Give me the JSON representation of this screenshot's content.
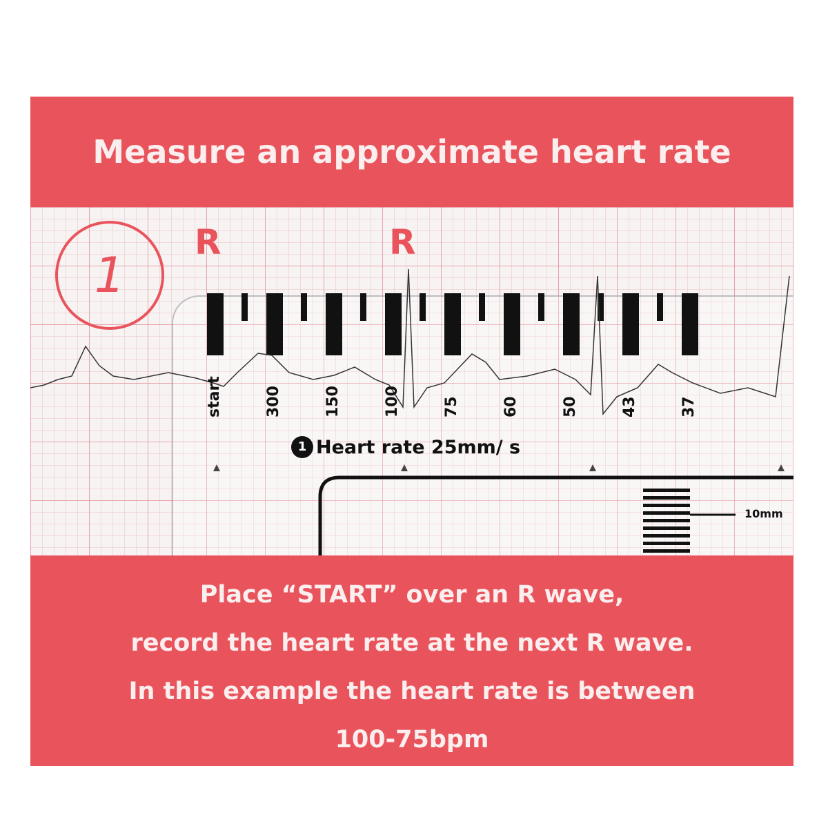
{
  "title": "Measure an approximate heart rate",
  "step_number": "1",
  "r_wave_label": "R",
  "scale_labels": [
    "start",
    "300",
    "150",
    "100",
    "75",
    "60",
    "50",
    "43",
    "37"
  ],
  "ruler_caption_badge": "1",
  "ruler_caption": "Heart rate 25mm/ s",
  "scale_mark_label": "10mm",
  "instructions": [
    "Place “START” over an R wave,",
    "record the heart rate at the next R wave.",
    "In this example the heart rate is between",
    "100-75bpm"
  ],
  "colors": {
    "accent": "#e9545c",
    "ink": "#111111"
  }
}
